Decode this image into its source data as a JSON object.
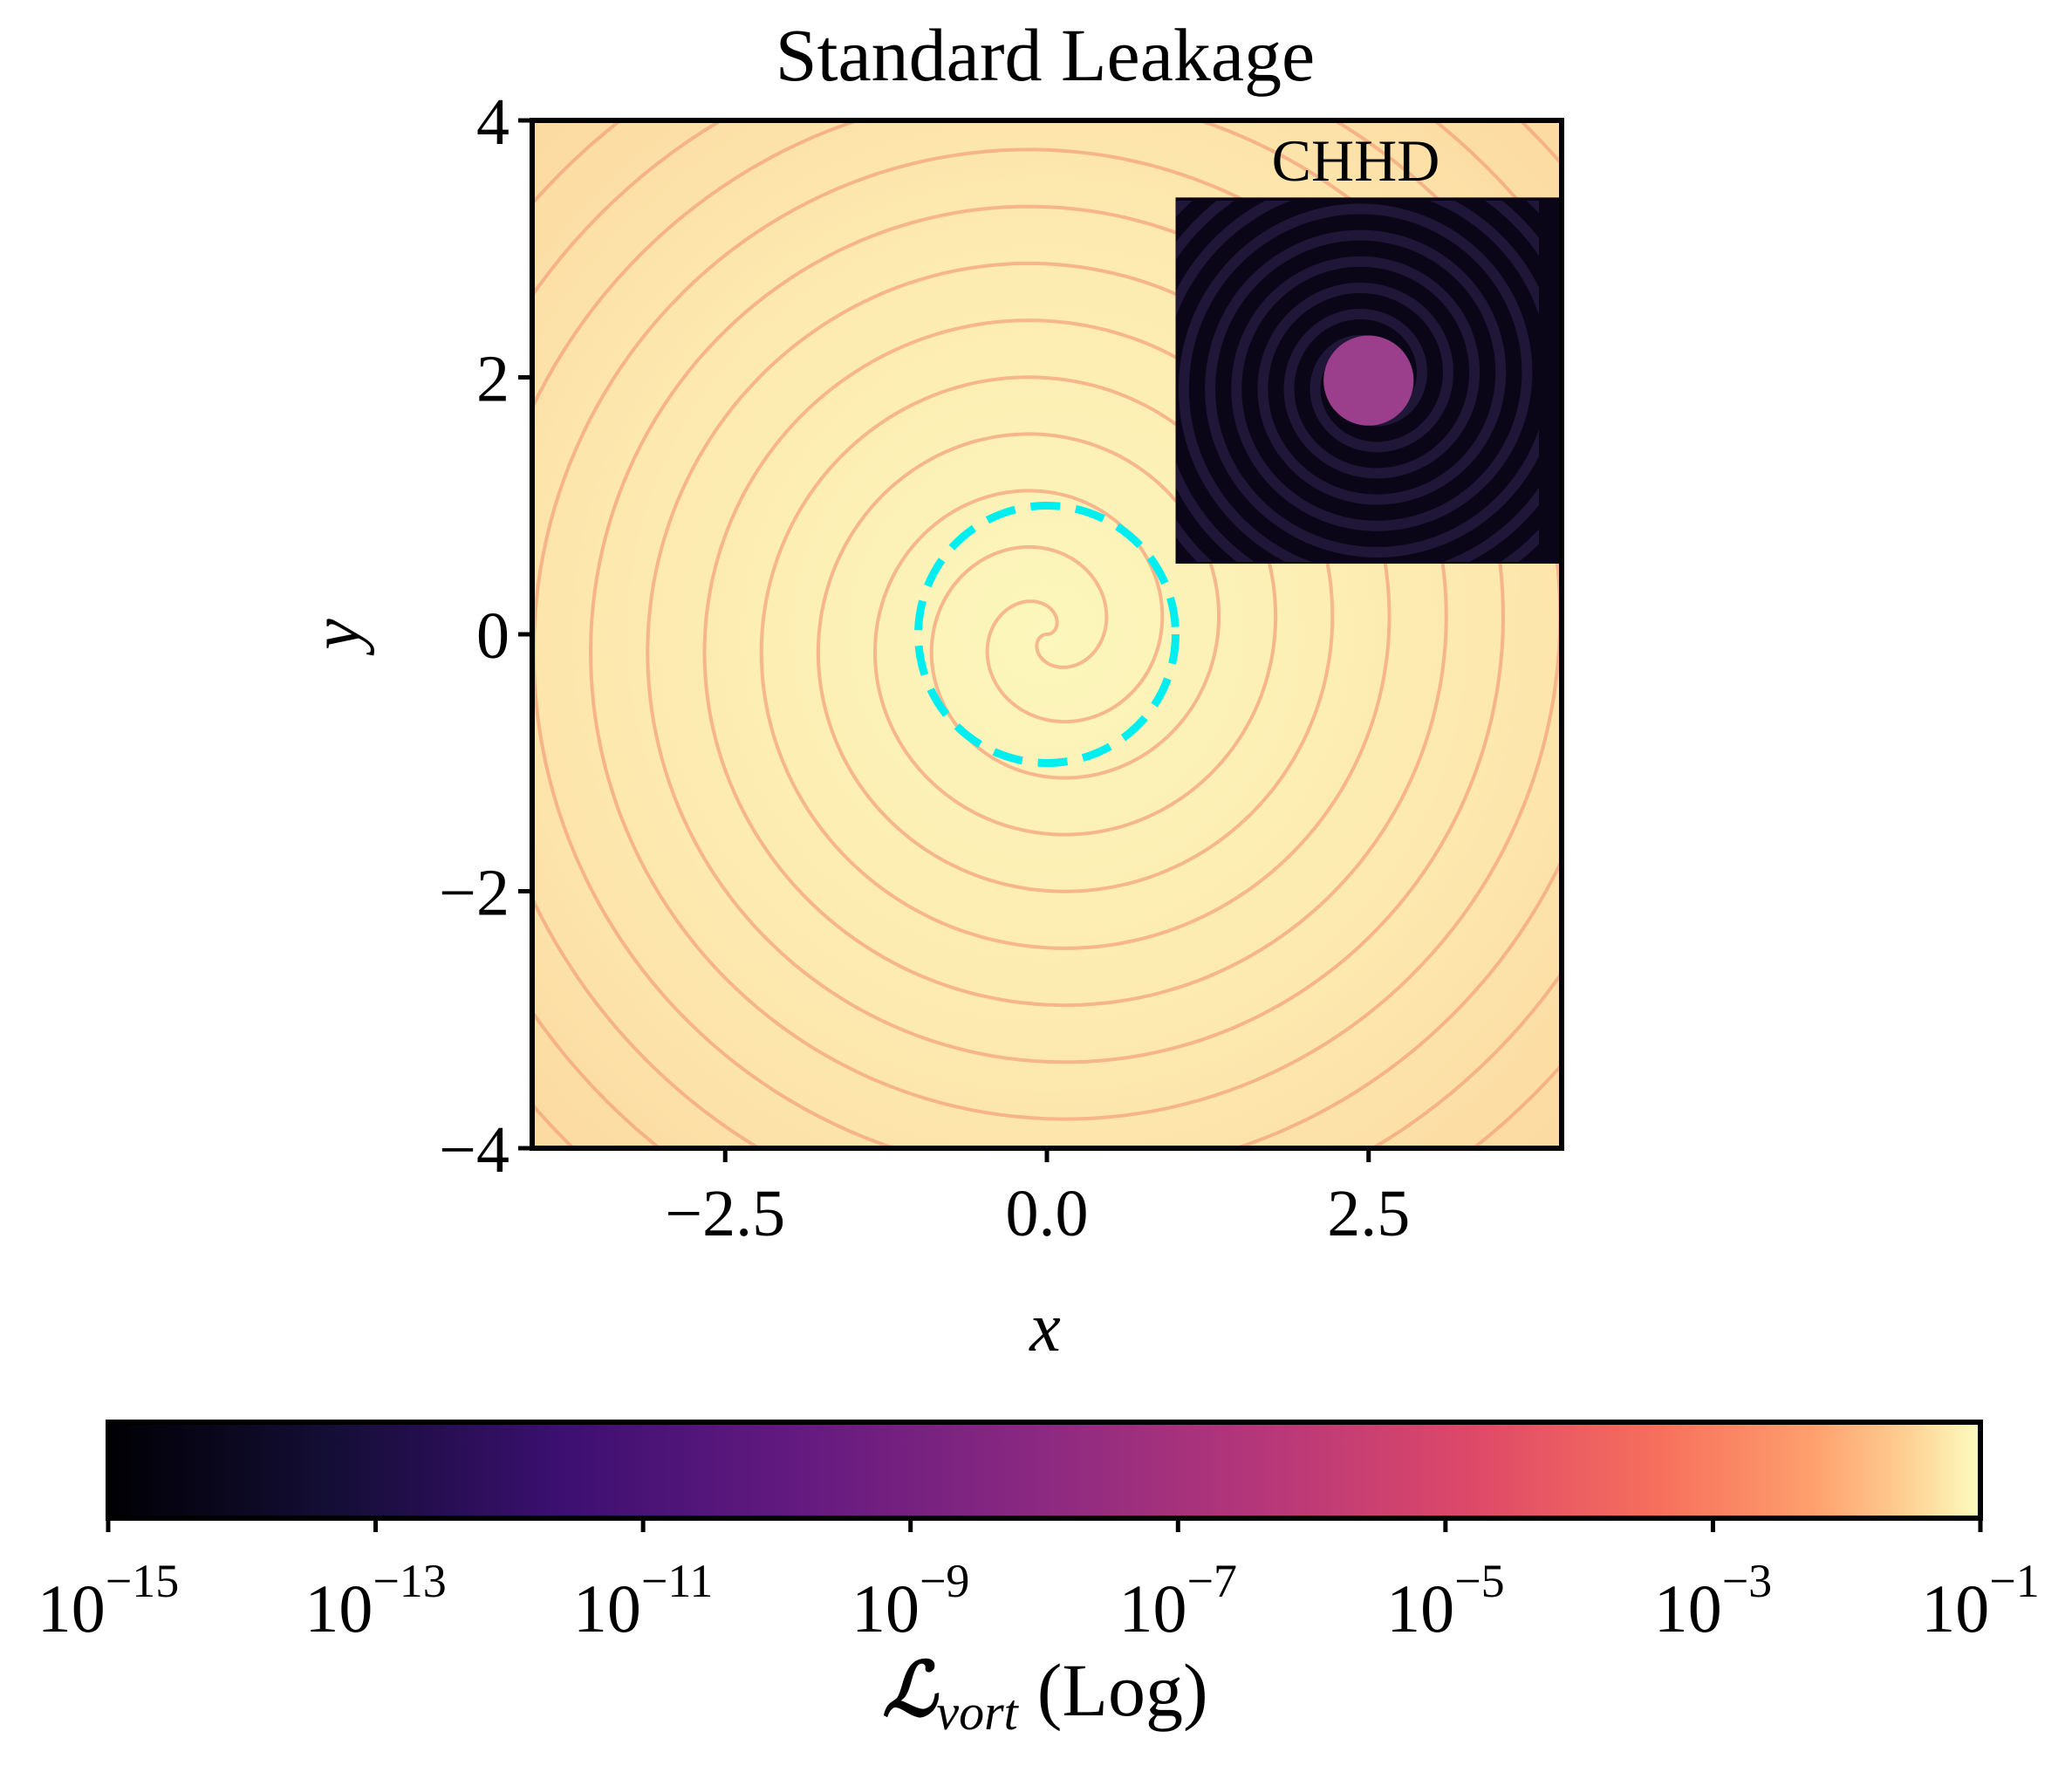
{
  "chart_data": {
    "type": "heatmap",
    "title": "Standard Leakage",
    "xlabel": "x",
    "ylabel": "y",
    "xlim": [
      -4,
      4
    ],
    "ylim": [
      -4,
      4
    ],
    "x_ticks": [
      -2.5,
      0.0,
      2.5
    ],
    "x_tick_labels": [
      "−2.5",
      "0.0",
      "2.5"
    ],
    "y_ticks": [
      4,
      2,
      0,
      -2,
      -4
    ],
    "y_tick_labels": [
      "4",
      "2",
      "0",
      "−2",
      "−4"
    ],
    "grid": false,
    "colormap": "magma",
    "color_scale": "log",
    "main_panel": {
      "field": "two-armed spiral, near-uniform high leakage",
      "background_color": "#fde3a7",
      "center_color": "#fcf7bc",
      "arm_color": "#f4a37e",
      "spiral_turns_visible": 6
    },
    "circle_marker": {
      "center": [
        0,
        0
      ],
      "radius": 1,
      "style": "dashed",
      "color": "#00eef0"
    },
    "inset": {
      "label": "CHHD",
      "extent": [
        1,
        4,
        0.55,
        3.4
      ],
      "background_color": "#0a0618",
      "spiral_color": "#1f1638",
      "disk_color": "#9b3f8c",
      "disk_radius": 0.35
    },
    "colorbar": {
      "label_main": "ℒ",
      "label_sub": "vort",
      "label_suffix": "(Log)",
      "tick_exponents": [
        -15,
        -13,
        -11,
        -9,
        -7,
        -5,
        -3,
        -1
      ],
      "tick_base": "10",
      "range_exponents": [
        -15,
        -1
      ],
      "orientation": "horizontal",
      "placement": "bottom"
    }
  }
}
